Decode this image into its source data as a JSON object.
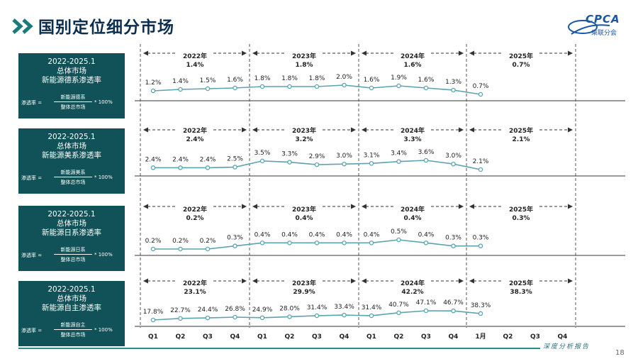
{
  "header": {
    "title": "国别定位细分市场"
  },
  "logo": {
    "text": "CPCA",
    "sub": "乘联分会"
  },
  "footer": {
    "text": "深度分析报告",
    "page": "18"
  },
  "colors": {
    "line": "#5ba3b0",
    "box": "#105257",
    "title": "#0c2f4f",
    "accent": "#2a8c8c"
  },
  "panels": [
    {
      "lines": [
        "2022-2025.1",
        "总体市场",
        "新能源德系渗透率"
      ],
      "formula": {
        "lhs": "渗透率 =",
        "num": "新能源德系",
        "den": "整体总市场",
        "rhs": "* 100%"
      }
    },
    {
      "lines": [
        "2022-2025.1",
        "总体市场",
        "新能源美系渗透率"
      ],
      "formula": {
        "lhs": "渗透率 =",
        "num": "新能源美系",
        "den": "整体总市场",
        "rhs": "* 100%"
      }
    },
    {
      "lines": [
        "2022-2025.1",
        "总体市场",
        "新能源日系渗透率"
      ],
      "formula": {
        "lhs": "渗透率 =",
        "num": "新能源日系",
        "den": "整体总市场",
        "rhs": "* 100%"
      }
    },
    {
      "lines": [
        "2022-2025.1",
        "总体市场",
        "新能源自主渗透率"
      ],
      "formula": {
        "lhs": "渗透率 =",
        "num": "新能源自主",
        "den": "整体总市场",
        "rhs": "* 100%"
      }
    }
  ],
  "chart_data": {
    "type": "line",
    "x_labels": [
      "Q1",
      "Q2",
      "Q3",
      "Q4",
      "Q1",
      "Q2",
      "Q3",
      "Q4",
      "Q1",
      "Q2",
      "Q3",
      "Q4",
      "1月",
      "Q2",
      "Q3",
      "Q4"
    ],
    "year_labels": [
      "2022年",
      "2023年",
      "2024年",
      "2025年"
    ],
    "panels": [
      {
        "annual": [
          "1.4%",
          "1.8%",
          "1.6%",
          "0.7%"
        ],
        "values": [
          1.2,
          1.4,
          1.5,
          1.6,
          1.8,
          1.8,
          1.8,
          2.0,
          1.6,
          1.9,
          1.6,
          1.3,
          0.7
        ],
        "labels": [
          "1.2%",
          "1.4%",
          "1.5%",
          "1.6%",
          "1.8%",
          "1.8%",
          "1.8%",
          "2.0%",
          "1.6%",
          "1.9%",
          "1.6%",
          "1.3%",
          "0.7%"
        ]
      },
      {
        "annual": [
          "2.4%",
          "3.2%",
          "3.3%",
          "2.1%"
        ],
        "values": [
          2.4,
          2.4,
          2.4,
          2.5,
          3.5,
          3.3,
          2.9,
          3.0,
          3.1,
          3.4,
          3.6,
          3.0,
          2.1
        ],
        "labels": [
          "2.4%",
          "2.4%",
          "2.4%",
          "2.5%",
          "3.5%",
          "3.3%",
          "2.9%",
          "3.0%",
          "3.1%",
          "3.4%",
          "3.6%",
          "3.0%",
          "2.1%"
        ]
      },
      {
        "annual": [
          "0.2%",
          "0.4%",
          "0.4%",
          "0.3%"
        ],
        "values": [
          0.2,
          0.2,
          0.2,
          0.3,
          0.4,
          0.4,
          0.4,
          0.4,
          0.4,
          0.5,
          0.4,
          0.3,
          0.3
        ],
        "labels": [
          "0.2%",
          "0.2%",
          "0.2%",
          "0.3%",
          "0.4%",
          "0.4%",
          "0.4%",
          "0.4%",
          "0.4%",
          "0.5%",
          "0.4%",
          "0.3%",
          "0.3%"
        ]
      },
      {
        "annual": [
          "23.1%",
          "29.9%",
          "42.2%",
          "38.3%"
        ],
        "values": [
          17.8,
          22.7,
          24.4,
          26.8,
          24.9,
          28.0,
          31.4,
          33.4,
          31.4,
          40.7,
          47.1,
          46.7,
          38.3
        ],
        "labels": [
          "17.8%",
          "22.7%",
          "24.4%",
          "26.8%",
          "24.9%",
          "28.0%",
          "31.4%",
          "33.4%",
          "31.4%",
          "40.7%",
          "47.1%",
          "46.7%",
          "38.3%"
        ]
      }
    ]
  }
}
